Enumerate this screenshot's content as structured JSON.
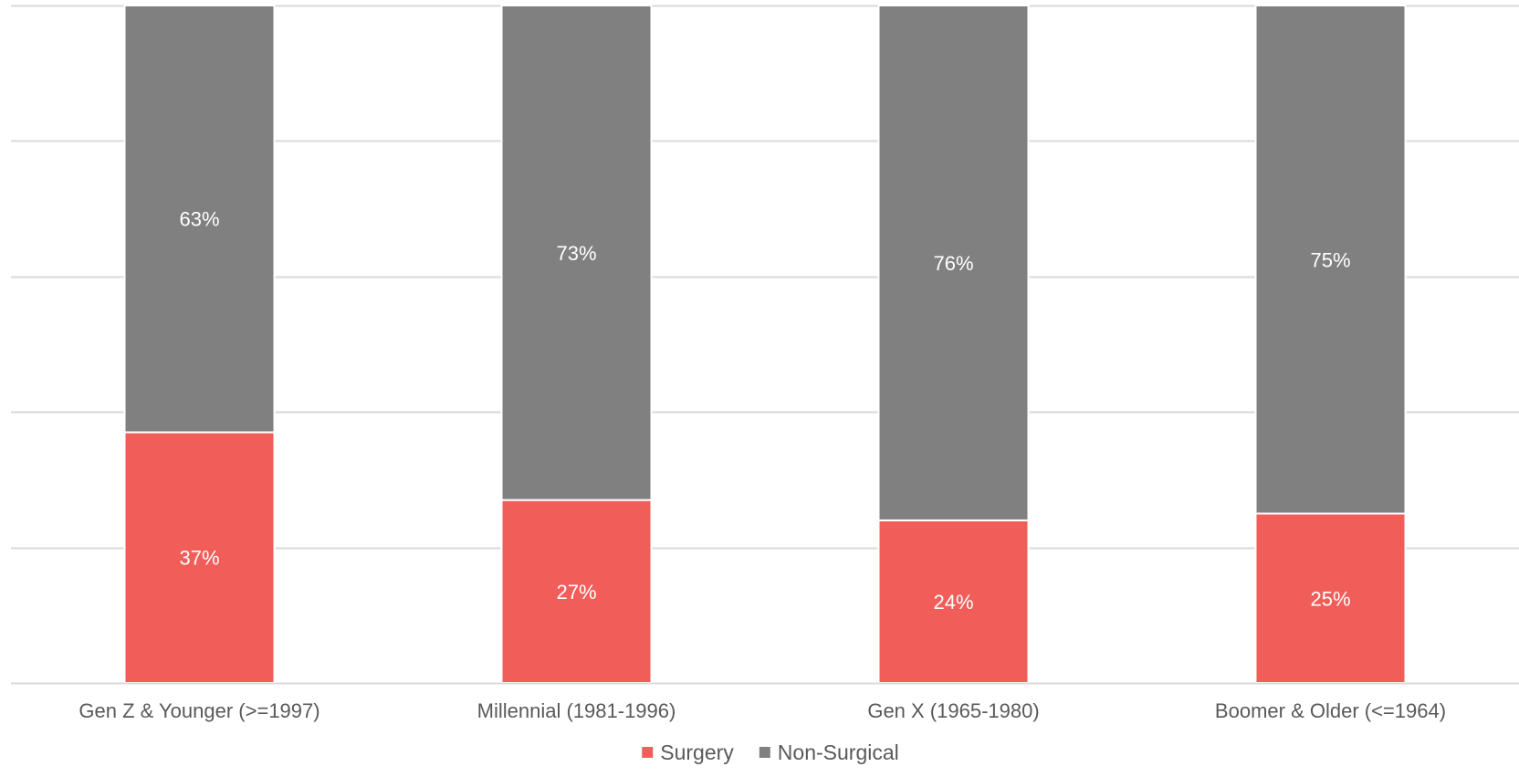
{
  "chart_data": {
    "type": "bar",
    "stacked": true,
    "categories": [
      "Gen Z & Younger (>=1997)",
      "Millennial (1981-1996)",
      "Gen X (1965-1980)",
      "Boomer & Older (<=1964)"
    ],
    "series": [
      {
        "name": "Surgery",
        "color": "#f15e59",
        "values": [
          37,
          27,
          24,
          25
        ],
        "labels": [
          "37%",
          "27%",
          "24%",
          "25%"
        ]
      },
      {
        "name": "Non-Surgical",
        "color": "#808080",
        "values": [
          63,
          73,
          76,
          75
        ],
        "labels": [
          "63%",
          "73%",
          "76%",
          "75%"
        ]
      }
    ],
    "ylim": [
      0,
      100
    ],
    "grid": true,
    "legend_position": "bottom"
  },
  "colors": {
    "grid": "#d9d9d9",
    "axis": "#d9d9d9",
    "text": "#595959",
    "label": "#ffffff"
  }
}
